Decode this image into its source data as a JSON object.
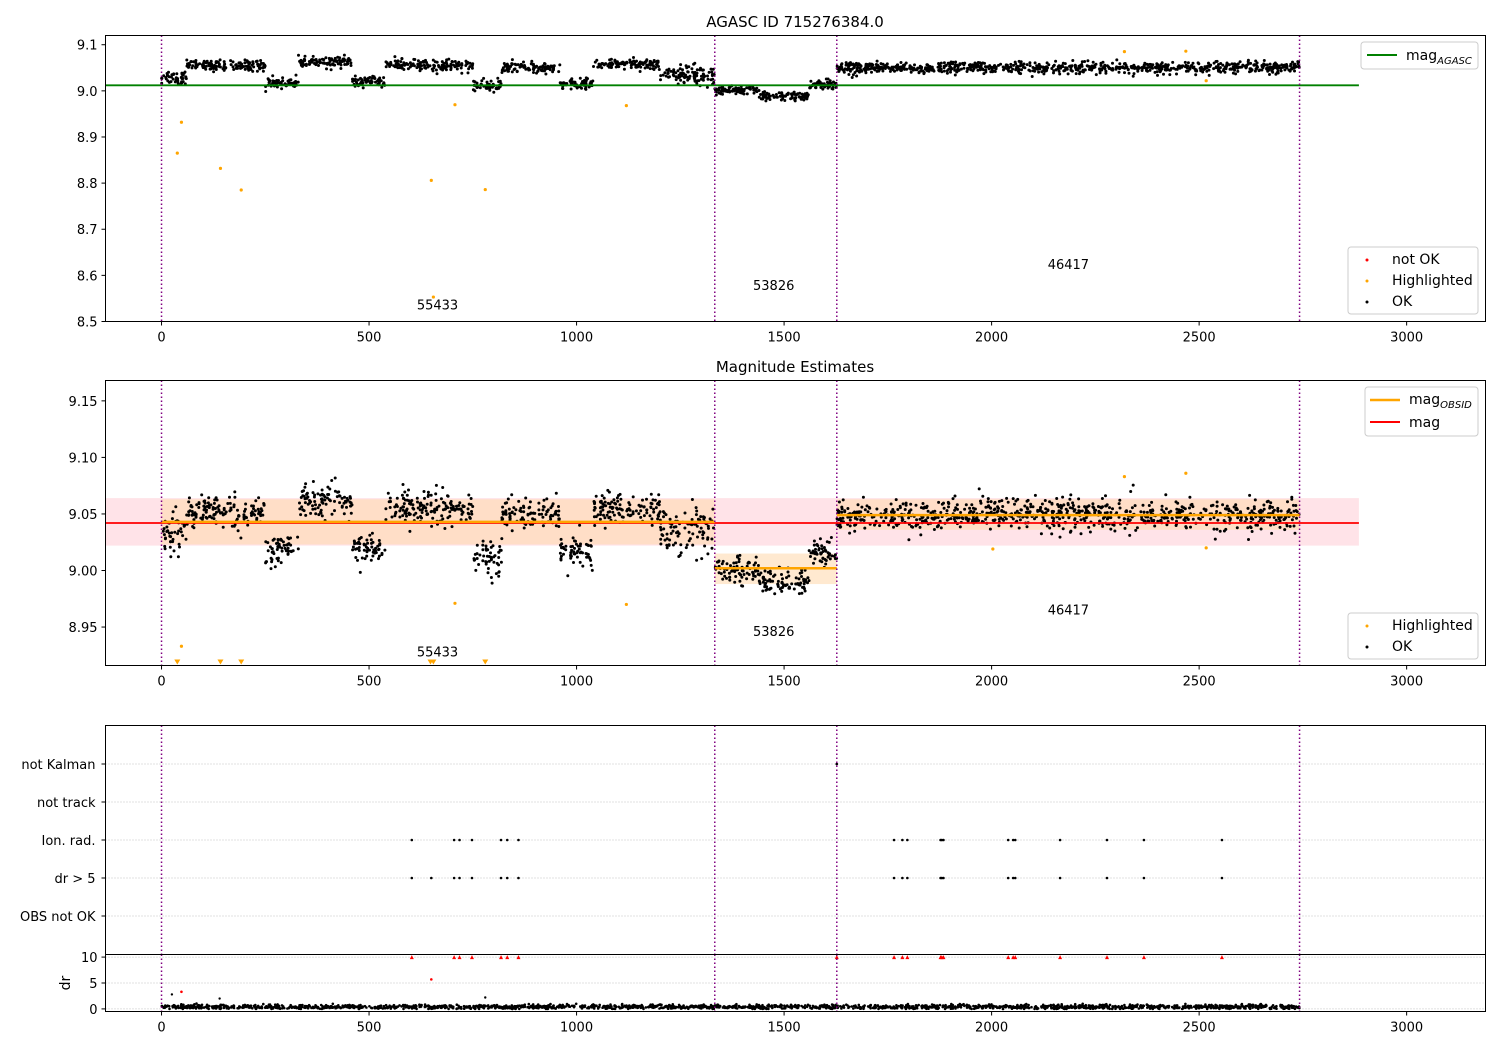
{
  "colors": {
    "ok": "#000000",
    "highlighted": "#ffa500",
    "not_ok": "#ff0000",
    "mag_agasc": "#008000",
    "mag_obsid": "#ffa500",
    "mag": "#ff0000",
    "mag_band": "#ffc0cb",
    "obsid_band": "#ffdab0",
    "obs_boundary": "#800080",
    "grid": "#b0b0b0"
  },
  "chart_data": [
    {
      "type": "scatter",
      "title": "AGASC ID 715276384.0",
      "xlim": [
        -135,
        3190
      ],
      "ylim": [
        8.5,
        9.12
      ],
      "xticks": [
        0,
        500,
        1000,
        1500,
        2000,
        2500,
        3000
      ],
      "xtick_labels": [
        "0",
        "500",
        "1000",
        "1500",
        "2000",
        "2500",
        "3000"
      ],
      "yticks": [
        8.5,
        8.6,
        8.7,
        8.8,
        8.9,
        9.0,
        9.1
      ],
      "ytick_labels": [
        "8.5",
        "8.6",
        "8.7",
        "8.8",
        "8.9",
        "9.0",
        "9.1"
      ],
      "obs_boundaries": [
        0,
        1333,
        1627,
        2742
      ],
      "obsid_annotations": [
        {
          "text": "55433",
          "x": 665,
          "y": 8.526
        },
        {
          "text": "53826",
          "x": 1475,
          "y": 8.568
        },
        {
          "text": "46417",
          "x": 2185,
          "y": 8.614
        }
      ],
      "hlines": [
        {
          "name": "mag_AGASC",
          "y": 9.012,
          "x": [
            -135,
            2885
          ]
        }
      ],
      "ok_segments": [
        {
          "x": [
            0,
            60
          ],
          "level": 9.03,
          "spread": 0.012
        },
        {
          "x": [
            60,
            250
          ],
          "level": 9.055,
          "spread": 0.008
        },
        {
          "x": [
            250,
            330
          ],
          "level": 9.018,
          "spread": 0.008
        },
        {
          "x": [
            330,
            460
          ],
          "level": 9.062,
          "spread": 0.008
        },
        {
          "x": [
            460,
            540
          ],
          "level": 9.02,
          "spread": 0.008
        },
        {
          "x": [
            540,
            750
          ],
          "level": 9.055,
          "spread": 0.009
        },
        {
          "x": [
            750,
            820
          ],
          "level": 9.012,
          "spread": 0.009
        },
        {
          "x": [
            820,
            960
          ],
          "level": 9.05,
          "spread": 0.008
        },
        {
          "x": [
            960,
            1040
          ],
          "level": 9.015,
          "spread": 0.008
        },
        {
          "x": [
            1040,
            1200
          ],
          "level": 9.058,
          "spread": 0.008
        },
        {
          "x": [
            1200,
            1333
          ],
          "level": 9.035,
          "spread": 0.015
        },
        {
          "x": [
            1333,
            1440
          ],
          "level": 9.0,
          "spread": 0.007
        },
        {
          "x": [
            1440,
            1560
          ],
          "level": 8.988,
          "spread": 0.007
        },
        {
          "x": [
            1560,
            1627
          ],
          "level": 9.013,
          "spread": 0.008
        },
        {
          "x": [
            1627,
            2742
          ],
          "level": 9.05,
          "spread": 0.009
        }
      ],
      "highlighted_points": [
        {
          "x": 38,
          "y": 8.865
        },
        {
          "x": 48,
          "y": 8.932
        },
        {
          "x": 142,
          "y": 8.832
        },
        {
          "x": 192,
          "y": 8.785
        },
        {
          "x": 650,
          "y": 8.806
        },
        {
          "x": 655,
          "y": 8.553
        },
        {
          "x": 707,
          "y": 8.97
        },
        {
          "x": 780,
          "y": 8.786
        },
        {
          "x": 1120,
          "y": 8.968
        },
        {
          "x": 2320,
          "y": 9.085
        },
        {
          "x": 2468,
          "y": 9.086
        },
        {
          "x": 2517,
          "y": 9.022
        }
      ],
      "not_ok_points": [],
      "legend_upper": {
        "position": "upper right",
        "entries": [
          {
            "label": "mag",
            "sub": "AGASC"
          }
        ]
      },
      "legend_lower": {
        "position": "lower right",
        "entries": [
          "not OK",
          "Highlighted",
          "OK"
        ]
      }
    },
    {
      "type": "scatter",
      "title": "Magnitude Estimates",
      "xlim": [
        -135,
        3190
      ],
      "ylim": [
        8.916,
        9.168
      ],
      "xticks": [
        0,
        500,
        1000,
        1500,
        2000,
        2500,
        3000
      ],
      "xtick_labels": [
        "0",
        "500",
        "1000",
        "1500",
        "2000",
        "2500",
        "3000"
      ],
      "yticks": [
        8.95,
        9.0,
        9.05,
        9.1,
        9.15
      ],
      "ytick_labels": [
        "8.95",
        "9.00",
        "9.05",
        "9.10",
        "9.15"
      ],
      "obs_boundaries": [
        0,
        1333,
        1627,
        2742
      ],
      "obsid_annotations": [
        {
          "text": "55433",
          "x": 665,
          "y": 8.924
        },
        {
          "text": "53826",
          "x": 1475,
          "y": 8.942
        },
        {
          "text": "46417",
          "x": 2185,
          "y": 8.961
        }
      ],
      "mag": {
        "y": 9.042,
        "band": [
          9.022,
          9.064
        ],
        "x": [
          -135,
          2885
        ]
      },
      "mag_obsid": [
        {
          "x": [
            0,
            1333
          ],
          "y": 9.043,
          "band": [
            9.023,
            9.063
          ]
        },
        {
          "x": [
            1333,
            1627
          ],
          "y": 9.002,
          "band": [
            8.988,
            9.015
          ]
        },
        {
          "x": [
            1627,
            2742
          ],
          "y": 9.049,
          "band": [
            9.036,
            9.063
          ]
        }
      ],
      "ok_segments": [
        {
          "x": [
            0,
            60
          ],
          "level": 9.03,
          "spread": 0.012
        },
        {
          "x": [
            60,
            250
          ],
          "level": 9.052,
          "spread": 0.01
        },
        {
          "x": [
            250,
            330
          ],
          "level": 9.02,
          "spread": 0.01
        },
        {
          "x": [
            330,
            460
          ],
          "level": 9.062,
          "spread": 0.01
        },
        {
          "x": [
            460,
            540
          ],
          "level": 9.022,
          "spread": 0.01
        },
        {
          "x": [
            540,
            750
          ],
          "level": 9.055,
          "spread": 0.011
        },
        {
          "x": [
            750,
            820
          ],
          "level": 9.012,
          "spread": 0.011
        },
        {
          "x": [
            820,
            960
          ],
          "level": 9.05,
          "spread": 0.01
        },
        {
          "x": [
            960,
            1040
          ],
          "level": 9.015,
          "spread": 0.01
        },
        {
          "x": [
            1040,
            1200
          ],
          "level": 9.055,
          "spread": 0.01
        },
        {
          "x": [
            1200,
            1333
          ],
          "level": 9.035,
          "spread": 0.016
        },
        {
          "x": [
            1333,
            1440
          ],
          "level": 9.0,
          "spread": 0.008
        },
        {
          "x": [
            1440,
            1560
          ],
          "level": 8.99,
          "spread": 0.008
        },
        {
          "x": [
            1560,
            1627
          ],
          "level": 9.015,
          "spread": 0.009
        },
        {
          "x": [
            1627,
            2742
          ],
          "level": 9.049,
          "spread": 0.01
        }
      ],
      "highlighted_points": [
        {
          "x": 48,
          "y": 8.933
        },
        {
          "x": 707,
          "y": 8.971
        },
        {
          "x": 1120,
          "y": 8.97
        },
        {
          "x": 2003,
          "y": 9.019
        },
        {
          "x": 2320,
          "y": 9.083
        },
        {
          "x": 2468,
          "y": 9.086
        },
        {
          "x": 2517,
          "y": 9.02
        }
      ],
      "lower_limit_markers": [
        38,
        142,
        192,
        648,
        655,
        780
      ],
      "legend_upper": {
        "position": "upper right",
        "entries": [
          {
            "label": "mag",
            "sub": "OBSID"
          },
          {
            "label": "mag",
            "sub": ""
          }
        ]
      },
      "legend_lower": {
        "position": "lower right",
        "entries": [
          "Highlighted",
          "OK"
        ]
      }
    },
    {
      "type": "scatter",
      "xlim": [
        -135,
        3190
      ],
      "obs_boundaries": [
        0,
        1333,
        1627,
        2742
      ],
      "flag_labels": [
        "not Kalman",
        "not track",
        "Ion. rad.",
        "dr > 5",
        "OBS not OK"
      ],
      "flag_points": [
        {
          "flag": "not Kalman",
          "x": [
            1627
          ]
        },
        {
          "flag": "not track",
          "x": []
        },
        {
          "flag": "Ion. rad.",
          "x": [
            603,
            705,
            718,
            748,
            818,
            833,
            860,
            1765,
            1785,
            1797,
            1877,
            1880,
            1884,
            2040,
            2052,
            2057,
            2165,
            2278,
            2367,
            2555
          ]
        },
        {
          "flag": "dr > 5",
          "x": [
            603,
            650,
            705,
            718,
            748,
            818,
            833,
            860,
            1765,
            1785,
            1797,
            1877,
            1880,
            1884,
            2040,
            2052,
            2057,
            2165,
            2278,
            2367,
            2555
          ]
        },
        {
          "flag": "OBS not OK",
          "x": []
        }
      ]
    },
    {
      "type": "scatter",
      "xlim": [
        -135,
        3190
      ],
      "ylim": [
        -0.5,
        10.5
      ],
      "ylabel": "dr",
      "yticks": [
        0,
        5,
        10
      ],
      "ytick_labels": [
        "0",
        "5",
        "10"
      ],
      "xticks": [
        0,
        500,
        1000,
        1500,
        2000,
        2500,
        3000
      ],
      "xtick_labels": [
        "0",
        "500",
        "1000",
        "1500",
        "2000",
        "2500",
        "3000"
      ],
      "obs_boundaries": [
        0,
        1333,
        1627,
        2742
      ],
      "clipped_at_10": [
        603,
        705,
        718,
        748,
        818,
        833,
        860,
        1627,
        1765,
        1785,
        1797,
        1877,
        1880,
        1884,
        2040,
        2052,
        2057,
        2165,
        2278,
        2367,
        2555
      ],
      "red_points": [
        {
          "x": 48,
          "y": 3.3
        },
        {
          "x": 650,
          "y": 5.7
        }
      ],
      "outlier_points": [
        {
          "x": 25,
          "y": 2.8
        },
        {
          "x": 140,
          "y": 2.0
        },
        {
          "x": 780,
          "y": 2.2
        }
      ],
      "baseline": {
        "level": 0.4,
        "spread": 0.35
      }
    }
  ]
}
